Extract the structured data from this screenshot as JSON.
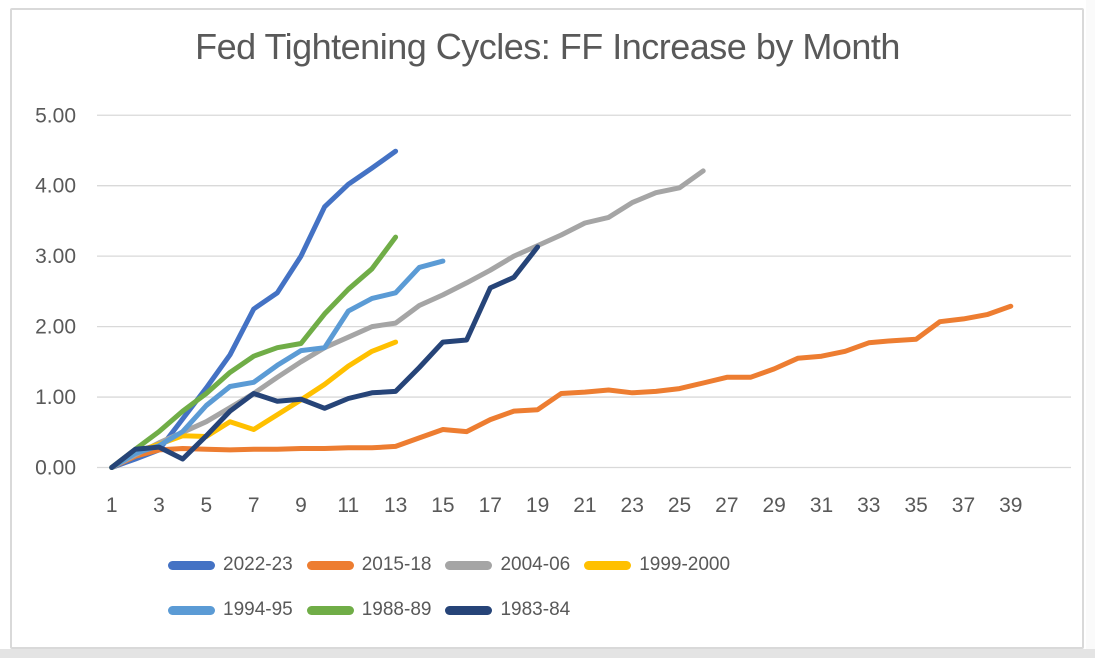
{
  "window": {
    "background": "#ffffff",
    "card_border_color": "#d9d9d9",
    "bottom_strip_color": "#e4e4e4"
  },
  "chart_data": {
    "type": "line",
    "title": "Fed Tightening Cycles: FF Increase by Month",
    "xlabel": "",
    "ylabel": "",
    "grid": "horizontal",
    "gridline_color": "#d9d9d9",
    "text_color": "#595959",
    "legend_position": "bottom",
    "x_axis": {
      "min": 1,
      "max": 39,
      "tick_labels": [
        "1",
        "3",
        "5",
        "7",
        "9",
        "11",
        "13",
        "15",
        "17",
        "19",
        "21",
        "23",
        "25",
        "27",
        "29",
        "31",
        "33",
        "35",
        "37",
        "39"
      ]
    },
    "y_axis": {
      "min": 0,
      "max": 5,
      "step": 1,
      "tick_labels": [
        "0.00",
        "1.00",
        "2.00",
        "3.00",
        "4.00",
        "5.00"
      ]
    },
    "x_unit": "month of tightening cycle",
    "series": [
      {
        "name": "2022-23",
        "color": "#4472C4",
        "values": [
          0,
          0.12,
          0.25,
          0.69,
          1.13,
          1.6,
          2.25,
          2.48,
          3.0,
          3.7,
          4.02,
          4.25,
          4.49
        ]
      },
      {
        "name": "2015-18",
        "color": "#ED7D31",
        "values": [
          0,
          0.16,
          0.25,
          0.27,
          0.26,
          0.25,
          0.26,
          0.26,
          0.27,
          0.27,
          0.28,
          0.28,
          0.3,
          0.42,
          0.54,
          0.51,
          0.68,
          0.8,
          0.82,
          1.05,
          1.07,
          1.1,
          1.06,
          1.08,
          1.12,
          1.2,
          1.28,
          1.28,
          1.4,
          1.55,
          1.58,
          1.65,
          1.77,
          1.8,
          1.82,
          2.07,
          2.11,
          2.17,
          2.29
        ]
      },
      {
        "name": "2004-06",
        "color": "#A5A5A5",
        "values": [
          0,
          0.18,
          0.35,
          0.5,
          0.65,
          0.85,
          1.05,
          1.28,
          1.5,
          1.7,
          1.85,
          2.0,
          2.05,
          2.3,
          2.45,
          2.62,
          2.8,
          3.0,
          3.15,
          3.3,
          3.47,
          3.55,
          3.76,
          3.9,
          3.97,
          4.21
        ]
      },
      {
        "name": "1999-2000",
        "color": "#FFC000",
        "values": [
          0,
          0.22,
          0.33,
          0.45,
          0.44,
          0.65,
          0.54,
          0.75,
          0.96,
          1.18,
          1.44,
          1.65,
          1.78
        ]
      },
      {
        "name": "1994-95",
        "color": "#5B9BD5",
        "values": [
          0,
          0.2,
          0.31,
          0.51,
          0.88,
          1.15,
          1.21,
          1.45,
          1.66,
          1.7,
          2.22,
          2.4,
          2.48,
          2.84,
          2.93
        ]
      },
      {
        "name": "1988-89",
        "color": "#70AD47",
        "values": [
          0,
          0.26,
          0.51,
          0.8,
          1.05,
          1.35,
          1.58,
          1.7,
          1.76,
          2.18,
          2.53,
          2.82,
          3.27
        ]
      },
      {
        "name": "1983-84",
        "color": "#264478",
        "values": [
          0,
          0.26,
          0.29,
          0.12,
          0.45,
          0.8,
          1.05,
          0.94,
          0.97,
          0.84,
          0.98,
          1.06,
          1.08,
          1.42,
          1.78,
          1.81,
          2.55,
          2.7,
          3.13
        ]
      }
    ],
    "legend_rows": [
      [
        0,
        1,
        2,
        3
      ],
      [
        4,
        5,
        6
      ]
    ]
  }
}
